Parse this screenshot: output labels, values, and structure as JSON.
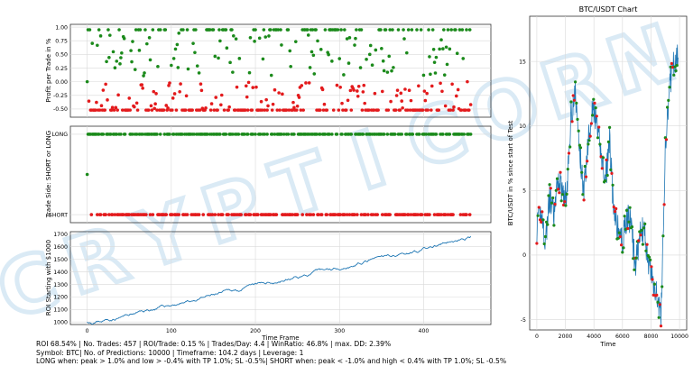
{
  "chart_data": [
    {
      "type": "scatter",
      "title": "",
      "xlabel": "",
      "ylabel": "Profit per Trade in %",
      "xlim": [
        -20,
        480
      ],
      "ylim": [
        -0.65,
        1.05
      ],
      "yticks": [
        "1.00",
        "0.75",
        "0.50",
        "0.25",
        "0.00",
        "-0.25",
        "-0.50"
      ],
      "ytick_values": [
        1.0,
        0.75,
        0.5,
        0.25,
        0.0,
        -0.25,
        -0.5
      ],
      "grid": true,
      "n_trades": 457,
      "series": [
        {
          "color": "#1b8a1b",
          "values_range": [
            0.1,
            0.95
          ]
        },
        {
          "color": "#e31a1c",
          "values_range": [
            -0.52,
            0.0
          ]
        }
      ]
    },
    {
      "type": "scatter",
      "title": "",
      "xlabel": "",
      "ylabel": "Trade Side: SHORT or LONG",
      "xlim": [
        -20,
        480
      ],
      "yticks": [
        "LONG",
        "SHORT"
      ],
      "categories": [
        "SHORT",
        "LONG"
      ],
      "grid": true,
      "series": [
        {
          "color": "#1b8a1b"
        },
        {
          "color": "#e31a1c"
        }
      ]
    },
    {
      "type": "line",
      "title": "",
      "xlabel": "Time Frame",
      "ylabel": "ROI Starting with $1000",
      "xlim": [
        -20,
        480
      ],
      "ylim": [
        980,
        1720
      ],
      "xticks": [
        "0",
        "100",
        "200",
        "300",
        "400"
      ],
      "xtick_values": [
        0,
        100,
        200,
        300,
        400
      ],
      "yticks": [
        "1700",
        "1600",
        "1500",
        "1400",
        "1300",
        "1200",
        "1100",
        "1000"
      ],
      "ytick_values": [
        1700,
        1600,
        1500,
        1400,
        1300,
        1200,
        1100,
        1000
      ],
      "grid": true,
      "start_value": 1000,
      "end_value": 1685,
      "color": "#1f77b4"
    },
    {
      "type": "line",
      "title": "BTC/USDT Chart",
      "xlabel": "Time",
      "ylabel": "BTC/USDT in % since start of Test",
      "xlim": [
        -500,
        10500
      ],
      "ylim": [
        -5.8,
        18.5
      ],
      "xticks": [
        "0",
        "2000",
        "4000",
        "6000",
        "8000",
        "10000"
      ],
      "xtick_values": [
        0,
        2000,
        4000,
        6000,
        8000,
        10000
      ],
      "yticks": [
        "15",
        "10",
        "5",
        "0",
        "-5"
      ],
      "ytick_values": [
        15,
        10,
        5,
        0,
        -5
      ],
      "grid": true,
      "color": "#1f77b4",
      "x": [
        0,
        300,
        600,
        900,
        1200,
        1500,
        1800,
        2100,
        2400,
        2700,
        3000,
        3300,
        3600,
        3900,
        4200,
        4500,
        4800,
        5100,
        5400,
        5700,
        6000,
        6300,
        6600,
        6900,
        7200,
        7500,
        7800,
        8100,
        8400,
        8700,
        9000,
        9300,
        9600,
        9900
      ],
      "y": [
        2,
        3.5,
        1,
        4.5,
        3,
        6,
        5,
        4.5,
        11,
        12.5,
        8,
        5,
        9,
        11.5,
        10,
        8,
        5.5,
        9,
        3,
        2,
        1,
        3,
        2.5,
        -1,
        1.5,
        2,
        -0.5,
        -2,
        -3,
        -4.8,
        8,
        13,
        15,
        15.3
      ]
    }
  ],
  "footer": {
    "line1": "ROI 68.54% | No. Trades: 457 | ROI/Trade: 0.15 % | Trades/Day: 4.4 | WinRatio: 46.8% | max. DD: 2.39%",
    "line2": "Symbol: BTC| No. of Predictions: 10000 | Timeframe: 104.2 days | Leverage: 1",
    "line3": "LONG when: peak > 1.0% and low > -0.4% with TP 1.0%; SL -0.5%| SHORT when: peak < -1.0% and high < 0.4% with TP 1.0%; SL -0.5%"
  },
  "watermark": {
    "text": "CRYPTICORN",
    "color": "#bcd9ee"
  }
}
